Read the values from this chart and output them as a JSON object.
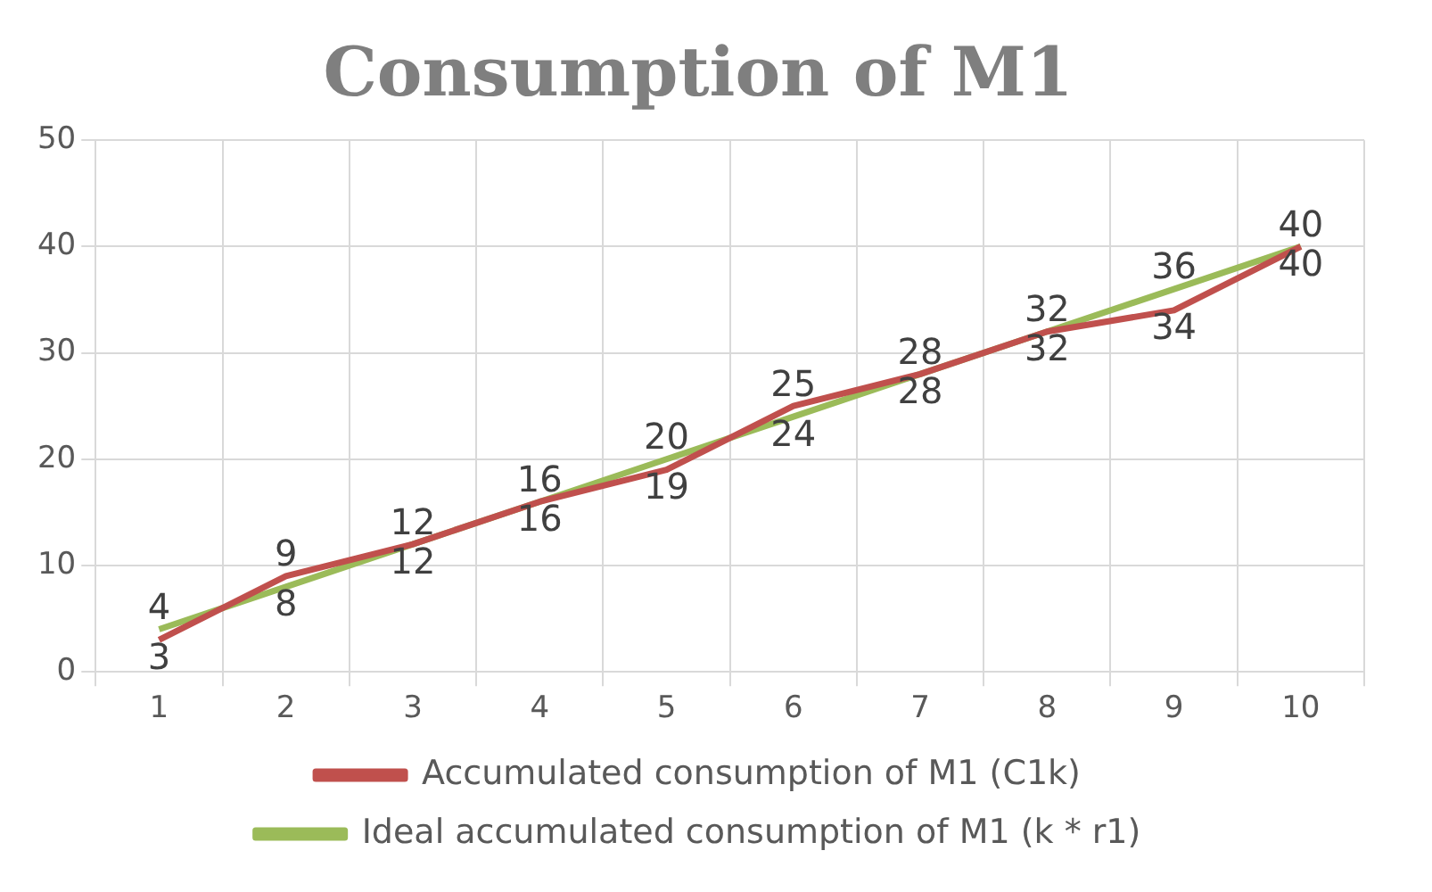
{
  "chart_data": {
    "type": "line",
    "title": "Consumption of M1",
    "categories": [
      "1",
      "2",
      "3",
      "4",
      "5",
      "6",
      "7",
      "8",
      "9",
      "10"
    ],
    "series": [
      {
        "name": "Accumulated consumption of M1 (C1k)",
        "color": "#c0504d",
        "values": [
          3,
          9,
          12,
          16,
          19,
          25,
          28,
          32,
          34,
          40
        ]
      },
      {
        "name": "Ideal accumulated consumption of M1 (k * r1)",
        "color": "#9bbb59",
        "values": [
          4,
          8,
          12,
          16,
          20,
          24,
          28,
          32,
          36,
          40
        ]
      }
    ],
    "ylim": [
      0,
      50
    ],
    "yticks": [
      0,
      10,
      20,
      30,
      40,
      50
    ],
    "grid": true,
    "legend": "bottom",
    "data_labels": true,
    "marker": "none",
    "line_style": "solid"
  }
}
